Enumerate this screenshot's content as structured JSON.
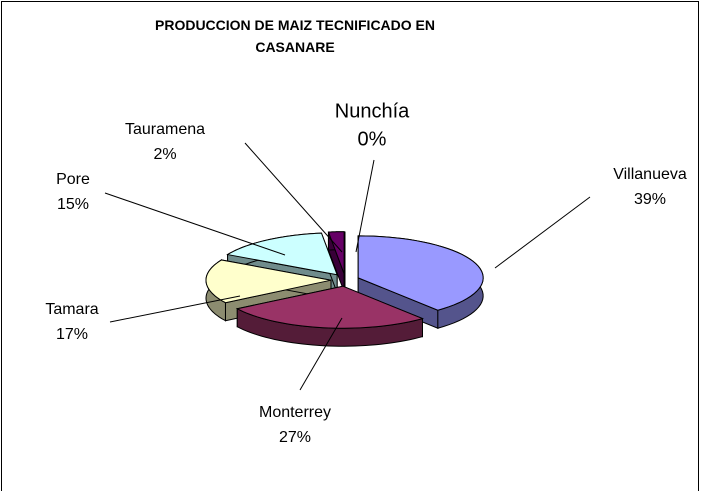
{
  "chart_data": {
    "type": "pie3d",
    "title": "PRODUCCION DE MAIZ TECNIFICADO EN CASANARE",
    "categories": [
      "Villanueva",
      "Monterrey",
      "Tamara",
      "Pore",
      "Tauramena",
      "Nunchía"
    ],
    "values": [
      39,
      27,
      17,
      15,
      2,
      0
    ],
    "value_labels": [
      "39%",
      "27%",
      "17%",
      "15%",
      "2%",
      "0%"
    ],
    "colors": [
      "#9999ff",
      "#993366",
      "#ffffcc",
      "#ccffff",
      "#660066",
      "#ff8080"
    ]
  }
}
